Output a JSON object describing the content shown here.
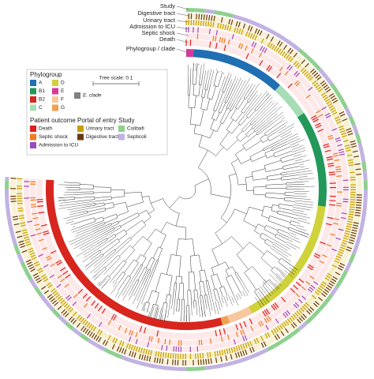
{
  "ring_labels": [
    "Study",
    "Digestive tract",
    "Urinary tract",
    "Admission to ICU",
    "Septic shock",
    "Death",
    "Phylogroup / clade"
  ],
  "tree_scale": "Tree scale: 0.1",
  "legend": {
    "phylogroup": {
      "title": "Phylogroup",
      "items": [
        {
          "label": "A",
          "color": "#1f6fb2"
        },
        {
          "label": "B1",
          "color": "#23985a"
        },
        {
          "label": "B2",
          "color": "#d7261e"
        },
        {
          "label": "C",
          "color": "#a6ddb4"
        },
        {
          "label": "D",
          "color": "#cfd23a"
        },
        {
          "label": "E",
          "color": "#d8399a"
        },
        {
          "label": "F",
          "color": "#f7c7a0"
        },
        {
          "label": "G",
          "color": "#f2a050"
        }
      ],
      "clade": {
        "label": "E. clade",
        "color": "#808080"
      }
    },
    "patient_outcome": {
      "title": "Patient outcome",
      "items": [
        {
          "label": "Death",
          "color": "#e0201c"
        },
        {
          "label": "Septic shock",
          "color": "#f07a22"
        },
        {
          "label": "Admission to ICU",
          "color": "#9a4cc0"
        }
      ]
    },
    "portal_of_entry": {
      "title": "Portal of entry",
      "items": [
        {
          "label": "Urinary tract",
          "color": "#c8a000"
        },
        {
          "label": "Digestive tract",
          "color": "#6b3a10"
        }
      ]
    },
    "study": {
      "title": "Study",
      "items": [
        {
          "label": "Colibafi",
          "color": "#8fd08f"
        },
        {
          "label": "Septicoli",
          "color": "#c2b2e2"
        }
      ]
    }
  }
}
